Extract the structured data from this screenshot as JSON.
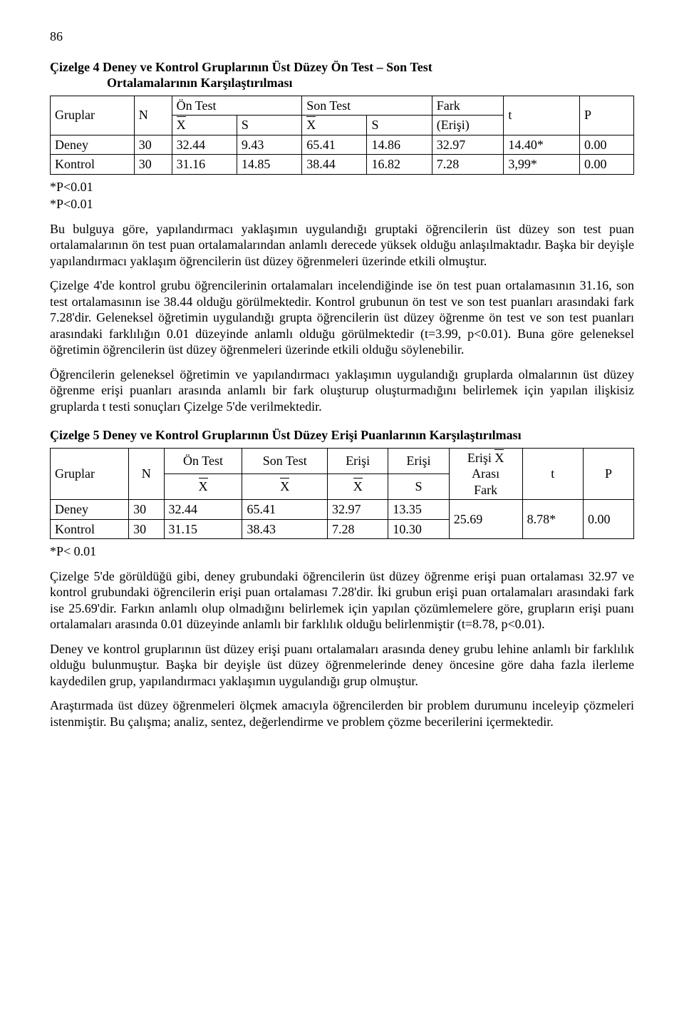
{
  "pageNumber": "86",
  "table4": {
    "title_line1": "Çizelge 4 Deney ve Kontrol Gruplarının Üst Düzey Ön Test – Son Test",
    "title_line2": "Ortalamalarının Karşılaştırılması",
    "headers": {
      "gruplar": "Gruplar",
      "N": "N",
      "onTest": "Ön Test",
      "sonTest": "Son Test",
      "X": "X",
      "S": "S",
      "fark": "Fark",
      "erisi": "(Erişi)",
      "t": "t",
      "P": "P"
    },
    "rows": [
      {
        "g": "Deney",
        "N": "30",
        "ox": "32.44",
        "os": "9.43",
        "sx": "65.41",
        "ss": "14.86",
        "fark": "32.97",
        "t": "14.40*",
        "p": "0.00"
      },
      {
        "g": "Kontrol",
        "N": "30",
        "ox": "31.16",
        "os": "14.85",
        "sx": "38.44",
        "ss": "16.82",
        "fark": "7.28",
        "t": "3,99*",
        "p": "0.00"
      }
    ],
    "note1": "*P<0.01",
    "note2": "*P<0.01"
  },
  "para1": "Bu bulguya göre, yapılandırmacı yaklaşımın uygulandığı gruptaki öğrencilerin üst düzey son test puan ortalamalarının ön test puan ortalamalarından anlamlı derecede yüksek olduğu anlaşılmaktadır. Başka bir deyişle yapılandırmacı yaklaşım öğrencilerin üst düzey öğrenmeleri üzerinde etkili olmuştur.",
  "para2": "Çizelge 4'de kontrol grubu öğrencilerinin ortalamaları incelendiğinde ise ön test puan ortalamasının 31.16, son test ortalamasının ise 38.44 olduğu görülmektedir. Kontrol grubunun ön test ve son test puanları arasındaki fark 7.28'dir. Geleneksel öğretimin uygulandığı grupta öğrencilerin üst düzey öğrenme ön test ve son test puanları arasındaki farklılığın 0.01 düzeyinde anlamlı olduğu görülmektedir (t=3.99, p<0.01). Buna göre geleneksel öğretimin öğrencilerin üst düzey öğrenmeleri üzerinde etkili olduğu söylenebilir.",
  "para3": "Öğrencilerin geleneksel öğretimin ve yapılandırmacı yaklaşımın uygulandığı gruplarda olmalarının üst düzey öğrenme erişi puanları arasında anlamlı bir fark oluşturup oluşturmadığını belirlemek için yapılan ilişkisiz gruplarda t testi sonuçları Çizelge 5'de verilmektedir.",
  "table5": {
    "title": "Çizelge 5 Deney ve Kontrol Gruplarının Üst Düzey Erişi Puanlarının Karşılaştırılması",
    "headers": {
      "gruplar": "Gruplar",
      "N": "N",
      "onTest": "Ön Test",
      "sonTest": "Son Test",
      "erisi": "Erişi",
      "erisiS": "Erişi",
      "X": "X",
      "S": "S",
      "erisiXBar": "Erişi X",
      "arasi": "Arası",
      "fark": "Fark",
      "t": "t",
      "P": "P"
    },
    "rows": [
      {
        "g": "Deney",
        "N": "30",
        "ox": "32.44",
        "sx": "65.41",
        "ex": "32.97",
        "es": "13.35"
      },
      {
        "g": "Kontrol",
        "N": "30",
        "ox": "31.15",
        "sx": "38.43",
        "ex": "7.28",
        "es": "10.30"
      }
    ],
    "shared": {
      "fark": "25.69",
      "t": "8.78*",
      "p": "0.00"
    },
    "note": "*P< 0.01"
  },
  "para4": "Çizelge 5'de görüldüğü gibi, deney grubundaki öğrencilerin üst düzey öğrenme erişi puan ortalaması 32.97 ve kontrol grubundaki öğrencilerin erişi puan ortalaması 7.28'dir. İki grubun erişi puan ortalamaları arasındaki fark ise 25.69'dir. Farkın anlamlı olup olmadığını belirlemek için yapılan çözümlemelere göre, grupların erişi puanı ortalamaları arasında 0.01 düzeyinde anlamlı bir farklılık olduğu belirlenmiştir (t=8.78, p<0.01).",
  "para5": "Deney ve kontrol gruplarının üst düzey erişi puanı ortalamaları arasında deney grubu lehine anlamlı bir farklılık olduğu bulunmuştur. Başka bir deyişle üst düzey öğrenmelerinde deney öncesine göre daha fazla ilerleme kaydedilen grup, yapılandırmacı yaklaşımın uygulandığı grup olmuştur.",
  "para6": "Araştırmada üst düzey öğrenmeleri ölçmek amacıyla öğrencilerden bir problem durumunu inceleyip çözmeleri istenmiştir. Bu çalışma; analiz, sentez, değerlendirme ve problem çözme becerilerini içermektedir."
}
